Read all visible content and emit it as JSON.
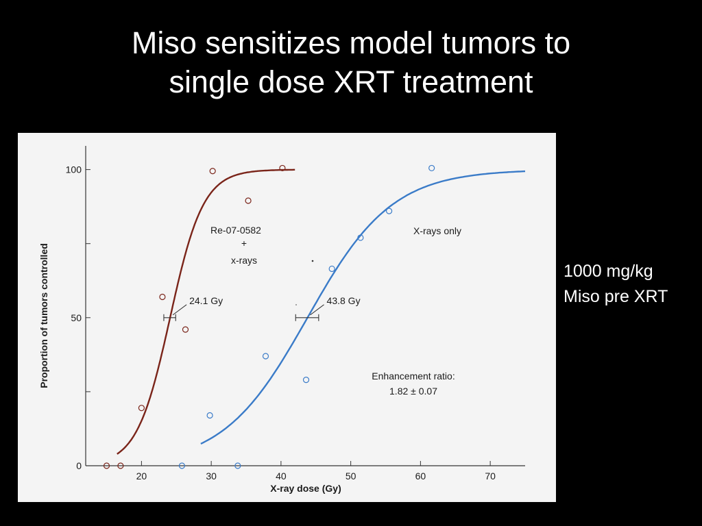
{
  "slide": {
    "title_line1": "Miso sensitizes model tumors to",
    "title_line2": "single dose XRT treatment",
    "side_note_line1": "1000 mg/kg",
    "side_note_line2": "Miso pre XRT"
  },
  "chart_data": {
    "type": "scatter",
    "xlabel": "X-ray dose (Gy)",
    "ylabel": "Proportion of tumors controlled",
    "xlim": [
      12,
      75
    ],
    "ylim": [
      0,
      108
    ],
    "x_ticks": [
      20,
      30,
      40,
      50,
      60,
      70
    ],
    "y_ticks": [
      0,
      50,
      100
    ],
    "y_minor_ticks": [
      25,
      75
    ],
    "grid": false,
    "series": [
      {
        "name": "Re-07-0582 + x-rays",
        "label_lines": [
          "Re-07-0582",
          "+",
          "x-rays"
        ],
        "color": "#7a2419",
        "points": [
          {
            "x": 15,
            "y": 0
          },
          {
            "x": 17,
            "y": 0
          },
          {
            "x": 20,
            "y": 19.5
          },
          {
            "x": 23,
            "y": 57
          },
          {
            "x": 26.3,
            "y": 46
          },
          {
            "x": 30.2,
            "y": 99.5
          },
          {
            "x": 35.3,
            "y": 89.5
          },
          {
            "x": 40.2,
            "y": 100.5
          }
        ],
        "fit": {
          "center": 24.1,
          "slope": 0.42,
          "x_range": [
            16.5,
            42
          ]
        },
        "td50": {
          "label": "24.1 Gy",
          "value": 24.1,
          "ci": [
            23.2,
            24.9
          ]
        }
      },
      {
        "name": "X-rays only",
        "label_lines": [
          "X-rays only"
        ],
        "color": "#3a7bc8",
        "points": [
          {
            "x": 25.8,
            "y": 0
          },
          {
            "x": 29.8,
            "y": 17
          },
          {
            "x": 33.8,
            "y": 0
          },
          {
            "x": 37.8,
            "y": 37
          },
          {
            "x": 43.6,
            "y": 29
          },
          {
            "x": 47.3,
            "y": 66.5
          },
          {
            "x": 51.4,
            "y": 77
          },
          {
            "x": 55.5,
            "y": 86
          },
          {
            "x": 61.6,
            "y": 100.5
          }
        ],
        "fit": {
          "center": 43.8,
          "slope": 0.165,
          "x_range": [
            28.5,
            75
          ]
        },
        "td50": {
          "label": "43.8 Gy",
          "value": 43.8,
          "ci": [
            42.1,
            45.4
          ]
        }
      }
    ],
    "annotation": {
      "line1": "Enhancement ratio:",
      "line2": "1.82 ± 0.07"
    }
  }
}
